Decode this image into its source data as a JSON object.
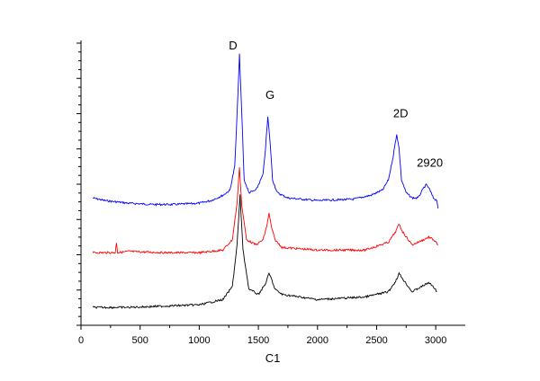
{
  "chart_data": {
    "type": "line",
    "title": "",
    "xlabel": "C1",
    "ylabel": "",
    "xlim": [
      0,
      3250
    ],
    "ylim": [
      0,
      100
    ],
    "x_ticks": [
      0,
      500,
      1000,
      1500,
      2000,
      2500,
      3000
    ],
    "x_tick_labels": [
      "0",
      "500",
      "1000",
      "1500",
      "2000",
      "2500",
      "3000"
    ],
    "y_tick_labels_shown": false,
    "grid": false,
    "legend": "none",
    "series": [
      {
        "color": "#0000ff",
        "x": [
          100,
          200,
          400,
          600,
          800,
          1000,
          1100,
          1200,
          1260,
          1300,
          1320,
          1340,
          1360,
          1380,
          1420,
          1480,
          1540,
          1560,
          1580,
          1600,
          1620,
          1660,
          1750,
          2000,
          2300,
          2450,
          2550,
          2600,
          2640,
          2670,
          2690,
          2710,
          2750,
          2800,
          2850,
          2900,
          2920,
          2940,
          2980,
          3010,
          3020
        ],
        "y": [
          43,
          42,
          41,
          40.5,
          40.5,
          41,
          42,
          44,
          46,
          55,
          75,
          98,
          75,
          50,
          45,
          46,
          52,
          62,
          74,
          64,
          50,
          45,
          43,
          42,
          42.5,
          44,
          46,
          50,
          59,
          67.5,
          62,
          50,
          45,
          43,
          43,
          47,
          48,
          47,
          43,
          42,
          39
        ]
      },
      {
        "color": "#ff0000",
        "x": [
          100,
          290,
          300,
          310,
          400,
          700,
          1000,
          1200,
          1280,
          1320,
          1340,
          1360,
          1400,
          1480,
          1540,
          1570,
          1590,
          1610,
          1640,
          1700,
          2000,
          2400,
          2600,
          2660,
          2690,
          2720,
          2800,
          2900,
          2940,
          2980,
          3020
        ],
        "y": [
          22,
          22,
          26,
          22,
          22.5,
          22,
          22,
          23,
          27,
          41,
          55,
          40,
          27,
          25,
          27,
          32,
          37,
          32,
          27,
          24,
          23,
          23,
          26,
          30,
          33,
          30,
          25,
          27,
          28,
          27,
          25
        ]
      },
      {
        "color": "#000000",
        "x": [
          100,
          400,
          700,
          1000,
          1200,
          1280,
          1320,
          1345,
          1370,
          1420,
          1500,
          1560,
          1590,
          1610,
          1640,
          1700,
          2000,
          2400,
          2600,
          2660,
          2690,
          2720,
          2800,
          2900,
          2940,
          2980,
          3010
        ],
        "y": [
          1,
          1,
          1.5,
          2,
          4,
          9,
          25,
          44,
          23,
          8,
          6,
          10,
          14,
          12,
          8,
          6,
          4,
          5,
          7,
          11,
          14,
          12,
          7,
          9.5,
          10.5,
          9,
          7
        ]
      }
    ],
    "annotations": [
      {
        "text": "D",
        "x": 1250,
        "y": 100
      },
      {
        "text": "G",
        "x": 1560,
        "y": 81
      },
      {
        "text": "2D",
        "x": 2640,
        "y": 74
      },
      {
        "text": "2920",
        "x": 2840,
        "y": 55
      }
    ]
  }
}
